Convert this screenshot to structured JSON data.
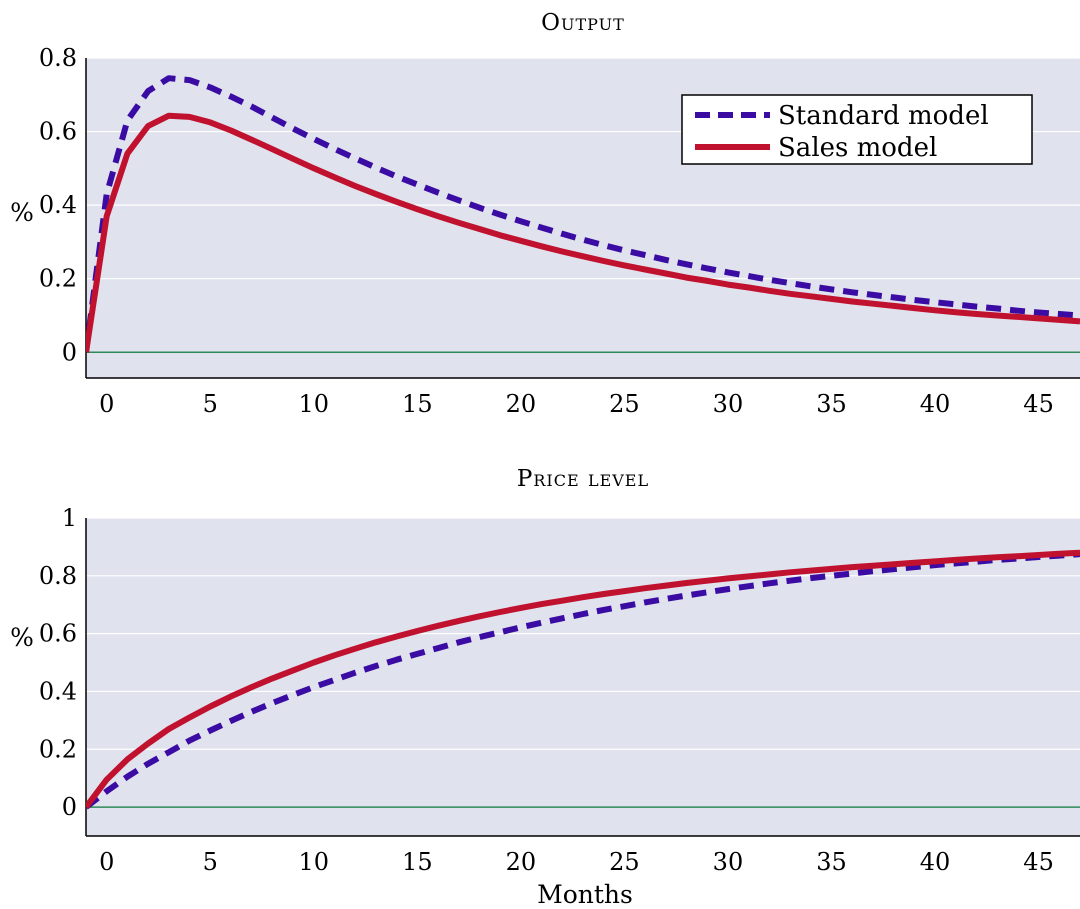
{
  "chart_data": [
    {
      "type": "line",
      "title": "Output",
      "xlabel": "",
      "ylabel": "%",
      "x": [
        -1,
        0,
        1,
        2,
        3,
        4,
        5,
        6,
        7,
        8,
        9,
        10,
        11,
        12,
        13,
        14,
        15,
        16,
        17,
        18,
        19,
        20,
        21,
        22,
        23,
        24,
        25,
        26,
        27,
        28,
        29,
        30,
        31,
        32,
        33,
        34,
        35,
        36,
        37,
        38,
        39,
        40,
        41,
        42,
        43,
        44,
        45,
        46,
        47
      ],
      "xlim": [
        -1,
        47
      ],
      "ylim": [
        -0.07,
        0.8
      ],
      "xticks": [
        "0",
        "5",
        "10",
        "15",
        "20",
        "25",
        "30",
        "35",
        "40",
        "45"
      ],
      "yticks": [
        "0",
        "0.2",
        "0.4",
        "0.6",
        "0.8"
      ],
      "grid": true,
      "legend": "top-right",
      "zero_line": true,
      "series": [
        {
          "name": "Standard model",
          "style": "dashed",
          "color": "#3a0ca3",
          "values": [
            0,
            0.43,
            0.63,
            0.71,
            0.745,
            0.74,
            0.72,
            0.695,
            0.668,
            0.638,
            0.608,
            0.58,
            0.553,
            0.527,
            0.502,
            0.478,
            0.456,
            0.434,
            0.413,
            0.393,
            0.374,
            0.356,
            0.339,
            0.322,
            0.306,
            0.291,
            0.277,
            0.264,
            0.251,
            0.239,
            0.228,
            0.217,
            0.207,
            0.197,
            0.188,
            0.179,
            0.171,
            0.163,
            0.156,
            0.149,
            0.142,
            0.136,
            0.13,
            0.124,
            0.119,
            0.113,
            0.108,
            0.104,
            0.1
          ]
        },
        {
          "name": "Sales model",
          "style": "solid",
          "color": "#c0122f",
          "values": [
            0,
            0.37,
            0.54,
            0.615,
            0.643,
            0.64,
            0.625,
            0.603,
            0.578,
            0.552,
            0.526,
            0.5,
            0.476,
            0.452,
            0.43,
            0.409,
            0.389,
            0.37,
            0.352,
            0.335,
            0.318,
            0.303,
            0.288,
            0.274,
            0.261,
            0.248,
            0.236,
            0.225,
            0.214,
            0.203,
            0.194,
            0.184,
            0.176,
            0.167,
            0.159,
            0.152,
            0.145,
            0.138,
            0.132,
            0.126,
            0.12,
            0.114,
            0.109,
            0.104,
            0.1,
            0.096,
            0.092,
            0.088,
            0.084
          ]
        }
      ]
    },
    {
      "type": "line",
      "title": "Price level",
      "xlabel": "Months",
      "ylabel": "%",
      "x": [
        -1,
        0,
        1,
        2,
        3,
        4,
        5,
        6,
        7,
        8,
        9,
        10,
        11,
        12,
        13,
        14,
        15,
        16,
        17,
        18,
        19,
        20,
        21,
        22,
        23,
        24,
        25,
        26,
        27,
        28,
        29,
        30,
        31,
        32,
        33,
        34,
        35,
        36,
        37,
        38,
        39,
        40,
        41,
        42,
        43,
        44,
        45,
        46,
        47
      ],
      "xlim": [
        -1,
        47
      ],
      "ylim": [
        -0.1,
        1
      ],
      "xticks": [
        "0",
        "5",
        "10",
        "15",
        "20",
        "25",
        "30",
        "35",
        "40",
        "45"
      ],
      "yticks": [
        "0",
        "0.2",
        "0.4",
        "0.6",
        "0.8",
        "1"
      ],
      "grid": true,
      "legend": "none",
      "zero_line": true,
      "series": [
        {
          "name": "Standard model",
          "style": "dashed",
          "color": "#3a0ca3",
          "values": [
            0,
            0.055,
            0.105,
            0.15,
            0.19,
            0.23,
            0.265,
            0.298,
            0.33,
            0.36,
            0.388,
            0.415,
            0.44,
            0.465,
            0.488,
            0.51,
            0.53,
            0.55,
            0.57,
            0.588,
            0.605,
            0.622,
            0.638,
            0.653,
            0.668,
            0.682,
            0.695,
            0.708,
            0.72,
            0.732,
            0.743,
            0.754,
            0.764,
            0.774,
            0.783,
            0.792,
            0.8,
            0.808,
            0.816,
            0.823,
            0.83,
            0.837,
            0.843,
            0.849,
            0.855,
            0.86,
            0.865,
            0.87,
            0.875
          ]
        },
        {
          "name": "Sales model",
          "style": "solid",
          "color": "#c0122f",
          "values": [
            0,
            0.095,
            0.165,
            0.22,
            0.27,
            0.31,
            0.348,
            0.383,
            0.415,
            0.445,
            0.473,
            0.5,
            0.525,
            0.548,
            0.57,
            0.59,
            0.609,
            0.627,
            0.644,
            0.66,
            0.675,
            0.689,
            0.702,
            0.714,
            0.726,
            0.737,
            0.747,
            0.757,
            0.766,
            0.775,
            0.783,
            0.791,
            0.798,
            0.805,
            0.812,
            0.818,
            0.824,
            0.83,
            0.835,
            0.84,
            0.845,
            0.85,
            0.855,
            0.86,
            0.864,
            0.868,
            0.872,
            0.876,
            0.88
          ]
        }
      ]
    }
  ]
}
